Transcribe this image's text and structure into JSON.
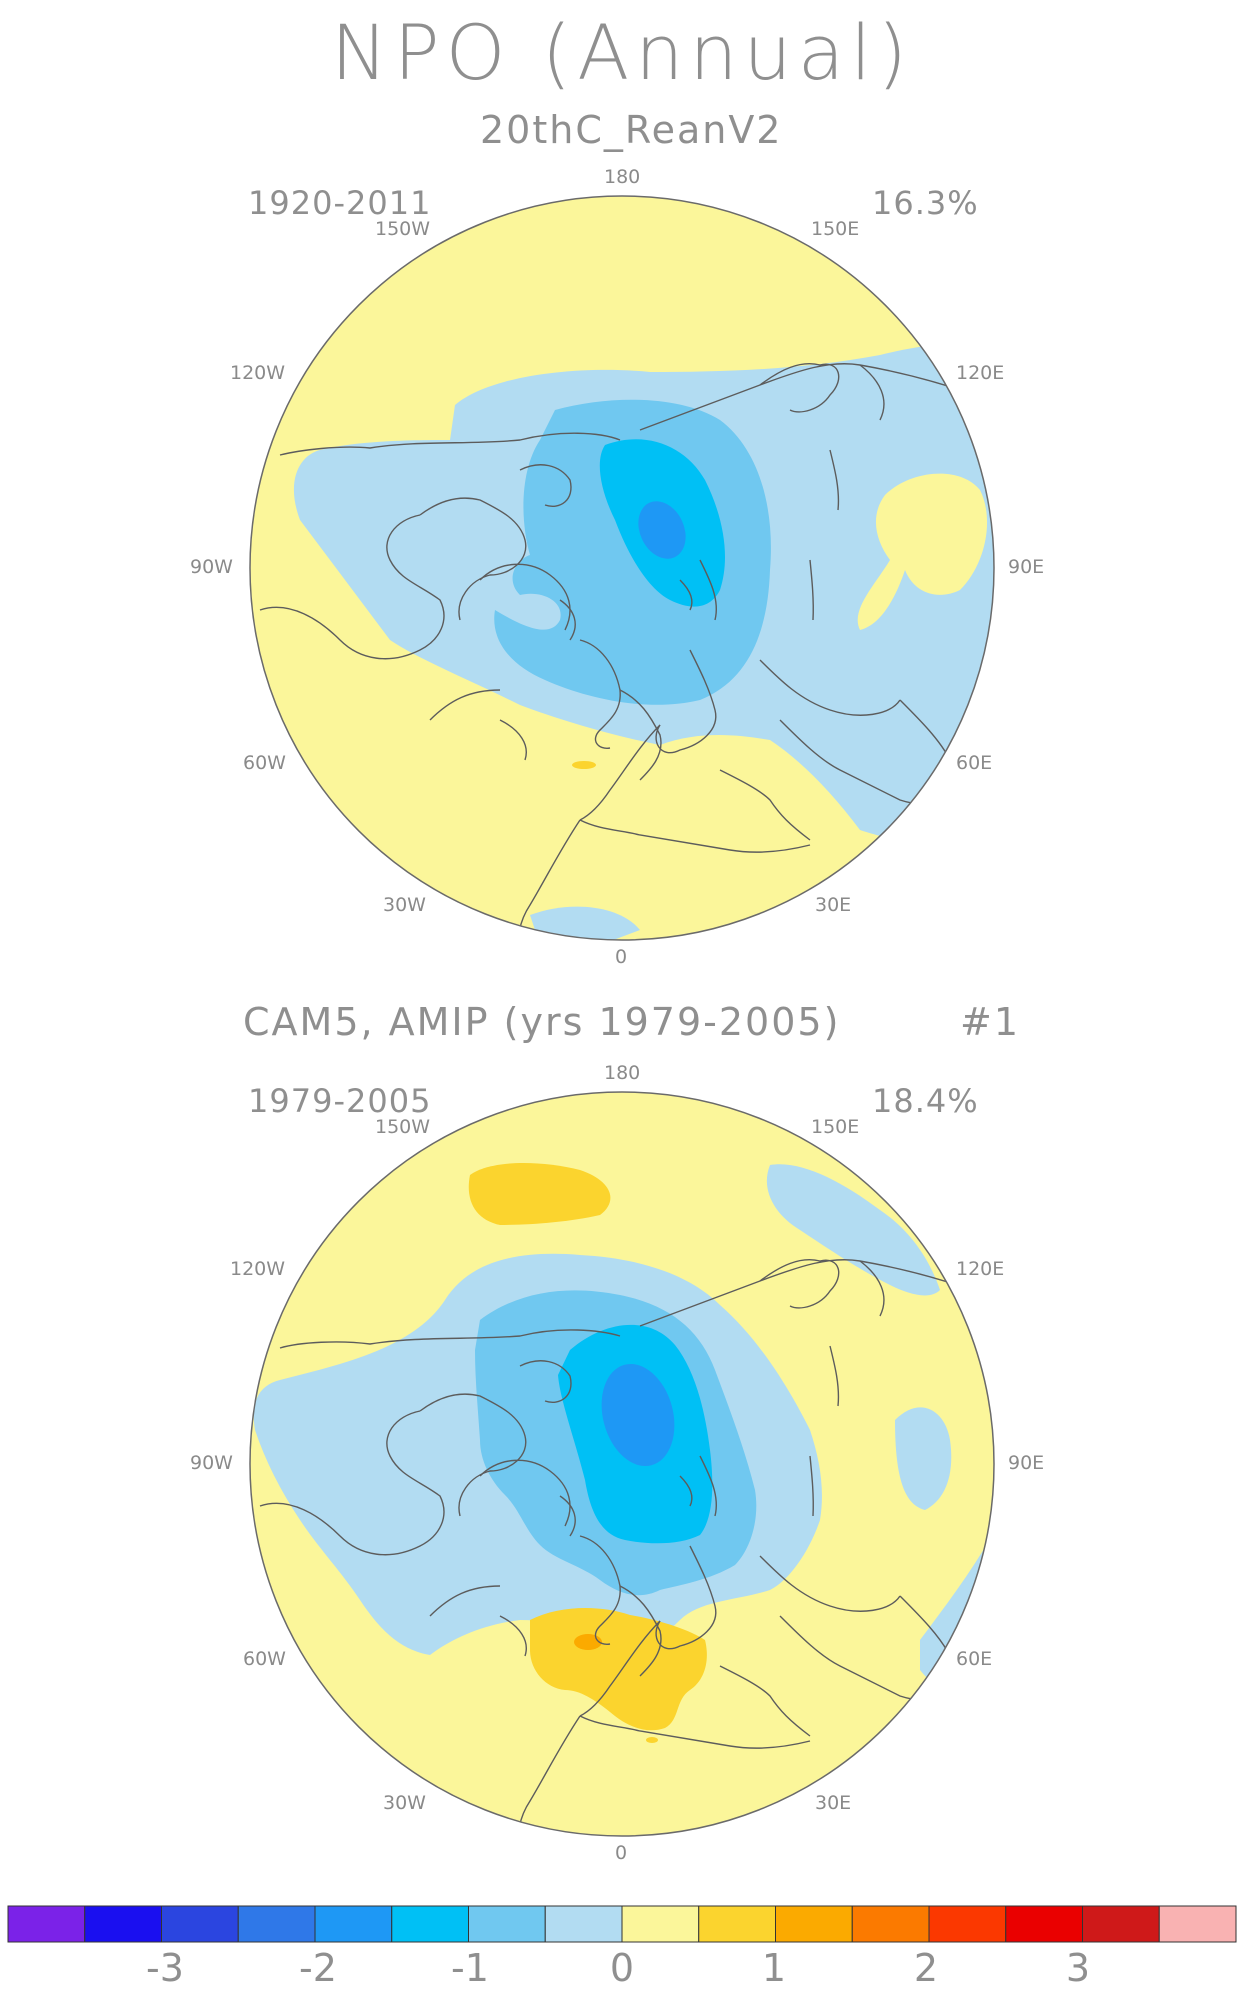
{
  "title": "NPO (Annual)",
  "panels": [
    {
      "title": "20thC_ReanV2",
      "period": "1920-2011",
      "variance": "16.3%",
      "extra": ""
    },
    {
      "title": "CAM5, AMIP (yrs 1979-2005)",
      "period": "1979-2005",
      "variance": "18.4%",
      "extra": "#1"
    }
  ],
  "longitude_labels": {
    "n180": "180",
    "w150": "150W",
    "e150": "150E",
    "w120": "120W",
    "e120": "120E",
    "w90": "90W",
    "e90": "90E",
    "w60": "60W",
    "e60": "60E",
    "w30": "30W",
    "e30": "30E",
    "s0": "0"
  },
  "colorbar": {
    "colors": [
      "#7b22e8",
      "#1a0ff0",
      "#2b45e0",
      "#2f78e8",
      "#1e98f5",
      "#00c0f5",
      "#70c8f0",
      "#b2dcf2",
      "#fbf69a",
      "#fbd42e",
      "#fbaa00",
      "#fb7a00",
      "#fb3800",
      "#ea0000",
      "#cf1919",
      "#f9b2b2"
    ],
    "labels": [
      "-3",
      "-2",
      "-1",
      "0",
      "1",
      "2",
      "3"
    ]
  }
}
